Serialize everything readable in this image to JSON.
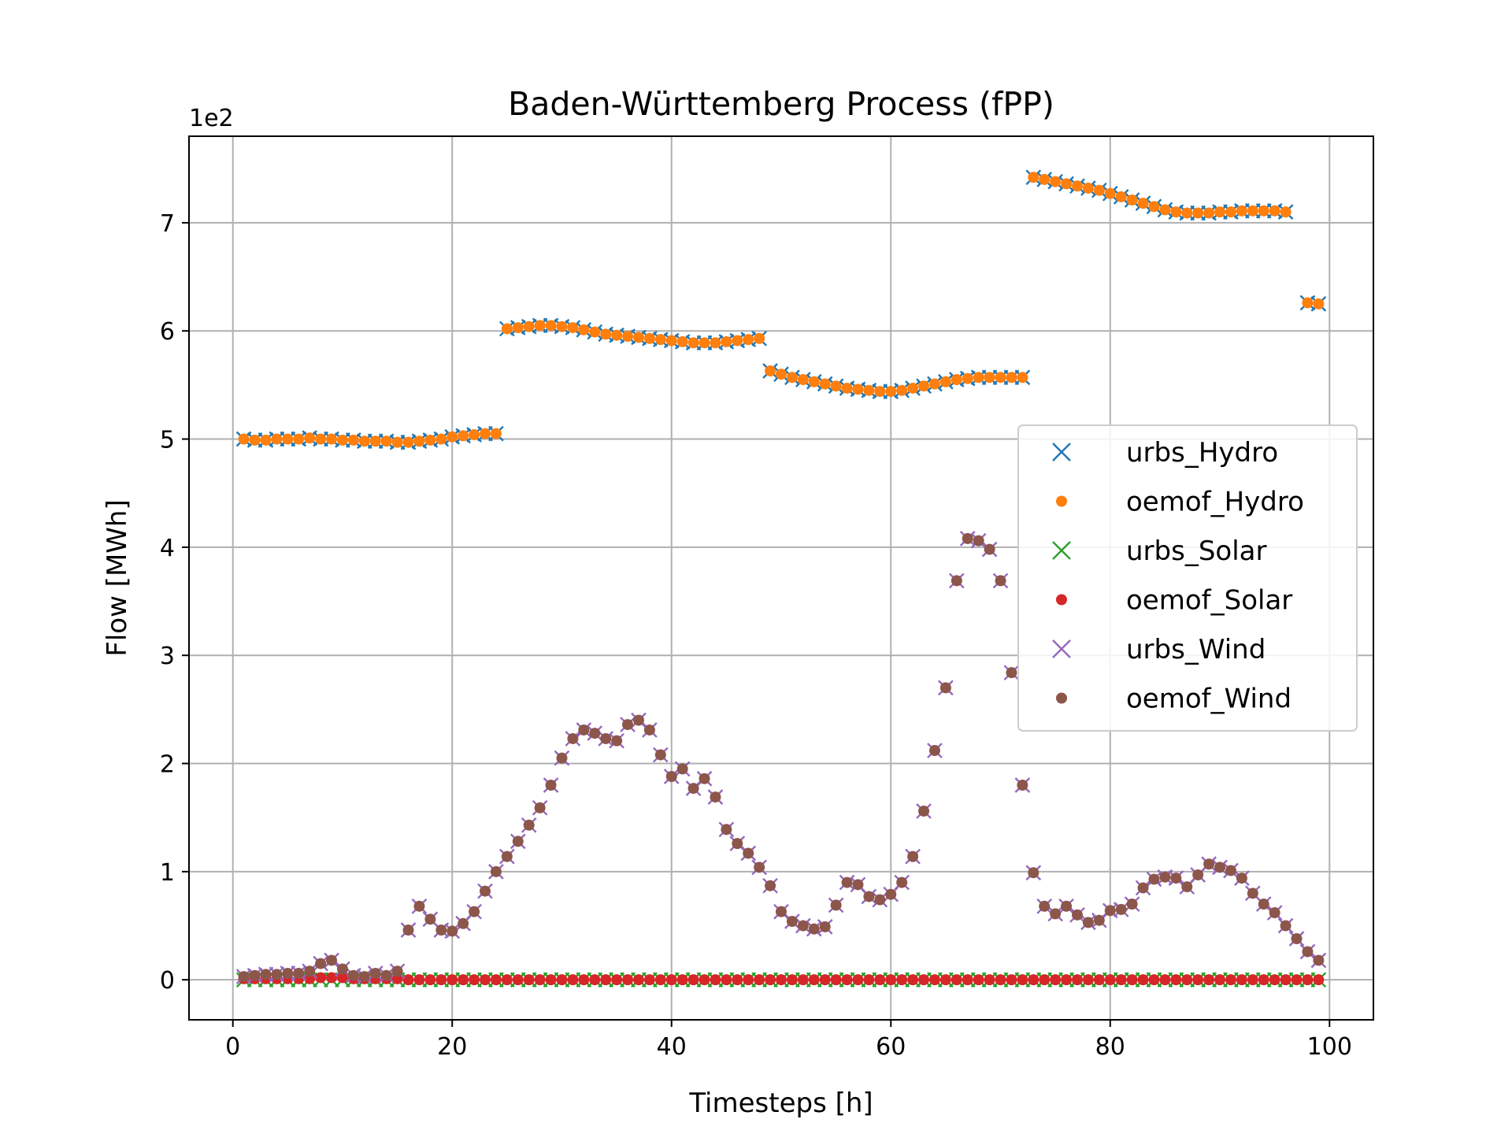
{
  "chart_data": {
    "type": "scatter",
    "title": "Baden-Württemberg Process (fPP)",
    "xlabel": "Timesteps [h]",
    "ylabel": "Flow [MWh]",
    "y_offset_text": "1e2",
    "xlim": [
      -4,
      104
    ],
    "ylim": [
      -0.37,
      7.8
    ],
    "xticks": [
      0,
      20,
      40,
      60,
      80,
      100
    ],
    "yticks": [
      0,
      1,
      2,
      3,
      4,
      5,
      6,
      7
    ],
    "grid": true,
    "legend_position": "center-right",
    "x": [
      1,
      2,
      3,
      4,
      5,
      6,
      7,
      8,
      9,
      10,
      11,
      12,
      13,
      14,
      15,
      16,
      17,
      18,
      19,
      20,
      21,
      22,
      23,
      24,
      25,
      26,
      27,
      28,
      29,
      30,
      31,
      32,
      33,
      34,
      35,
      36,
      37,
      38,
      39,
      40,
      41,
      42,
      43,
      44,
      45,
      46,
      47,
      48,
      49,
      50,
      51,
      52,
      53,
      54,
      55,
      56,
      57,
      58,
      59,
      60,
      61,
      62,
      63,
      64,
      65,
      66,
      67,
      68,
      69,
      70,
      71,
      72,
      73,
      74,
      75,
      76,
      77,
      78,
      79,
      80,
      81,
      82,
      83,
      84,
      85,
      86,
      87,
      88,
      89,
      90,
      91,
      92,
      93,
      94,
      95,
      96,
      97,
      98,
      99
    ],
    "series": [
      {
        "name": "urbs_Hydro",
        "marker": "x",
        "color": "#1f77b4",
        "values": [
          5.0,
          4.99,
          4.99,
          5.0,
          5.0,
          5.0,
          5.01,
          5.0,
          5.0,
          4.99,
          4.99,
          4.98,
          4.98,
          4.98,
          4.97,
          4.97,
          4.98,
          4.99,
          5.0,
          5.02,
          5.03,
          5.04,
          5.05,
          5.05,
          6.02,
          6.03,
          6.04,
          6.05,
          6.05,
          6.04,
          6.03,
          6.01,
          5.99,
          5.97,
          5.96,
          5.95,
          5.94,
          5.93,
          5.92,
          5.91,
          5.9,
          5.89,
          5.89,
          5.89,
          5.9,
          5.91,
          5.92,
          5.93,
          5.63,
          5.6,
          5.57,
          5.55,
          5.53,
          5.51,
          5.49,
          5.47,
          5.46,
          5.45,
          5.44,
          5.44,
          5.45,
          5.47,
          5.49,
          5.51,
          5.53,
          5.55,
          5.56,
          5.57,
          5.57,
          5.57,
          5.57,
          5.57,
          7.42,
          7.4,
          7.38,
          7.36,
          7.34,
          7.32,
          7.3,
          7.27,
          7.24,
          7.21,
          7.18,
          7.15,
          7.12,
          7.1,
          7.09,
          7.09,
          7.09,
          7.1,
          7.1,
          7.11,
          7.11,
          7.11,
          7.11,
          7.1,
          null,
          6.26,
          6.25
        ]
      },
      {
        "name": "oemof_Hydro",
        "marker": "dot",
        "color": "#ff7f0e",
        "values": [
          5.0,
          4.99,
          4.99,
          5.0,
          5.0,
          5.0,
          5.01,
          5.0,
          5.0,
          4.99,
          4.99,
          4.98,
          4.98,
          4.98,
          4.97,
          4.97,
          4.98,
          4.99,
          5.0,
          5.02,
          5.03,
          5.04,
          5.05,
          5.05,
          6.02,
          6.03,
          6.04,
          6.05,
          6.05,
          6.04,
          6.03,
          6.01,
          5.99,
          5.97,
          5.96,
          5.95,
          5.94,
          5.93,
          5.92,
          5.91,
          5.9,
          5.89,
          5.89,
          5.89,
          5.9,
          5.91,
          5.92,
          5.93,
          5.63,
          5.6,
          5.57,
          5.55,
          5.53,
          5.51,
          5.49,
          5.47,
          5.46,
          5.45,
          5.44,
          5.44,
          5.45,
          5.47,
          5.49,
          5.51,
          5.53,
          5.55,
          5.56,
          5.57,
          5.57,
          5.57,
          5.57,
          5.57,
          7.42,
          7.4,
          7.38,
          7.36,
          7.34,
          7.32,
          7.3,
          7.27,
          7.24,
          7.21,
          7.18,
          7.15,
          7.12,
          7.1,
          7.09,
          7.09,
          7.09,
          7.1,
          7.1,
          7.11,
          7.11,
          7.11,
          7.11,
          7.1,
          null,
          6.26,
          6.25
        ]
      },
      {
        "name": "urbs_Solar",
        "marker": "x",
        "color": "#2ca02c",
        "values": [
          0,
          0,
          0,
          0,
          0,
          0,
          0,
          0,
          0,
          0,
          0,
          0,
          0,
          0,
          0,
          0,
          0,
          0,
          0,
          0,
          0,
          0,
          0,
          0,
          0,
          0,
          0,
          0,
          0,
          0,
          0,
          0,
          0,
          0,
          0,
          0,
          0,
          0,
          0,
          0,
          0,
          0,
          0,
          0,
          0,
          0,
          0,
          0,
          0,
          0,
          0,
          0,
          0,
          0,
          0,
          0,
          0,
          0,
          0,
          0,
          0,
          0,
          0,
          0,
          0,
          0,
          0,
          0,
          0,
          0,
          0,
          0,
          0,
          0,
          0,
          0,
          0,
          0,
          0,
          0,
          0,
          0,
          0,
          0,
          0,
          0,
          0,
          0,
          0,
          0,
          0,
          0,
          0,
          0,
          0,
          0,
          0,
          0,
          0
        ]
      },
      {
        "name": "oemof_Solar",
        "marker": "dot",
        "color": "#d62728",
        "values": [
          0.01,
          0.01,
          0.01,
          0.01,
          0.01,
          0.01,
          0.01,
          0.02,
          0.02,
          0.02,
          0.01,
          0.01,
          0.01,
          0.01,
          0.01,
          0,
          0,
          0,
          0,
          0,
          0,
          0,
          0,
          0,
          0,
          0,
          0,
          0,
          0,
          0,
          0,
          0,
          0,
          0,
          0,
          0,
          0,
          0,
          0,
          0,
          0,
          0,
          0,
          0,
          0,
          0,
          0,
          0,
          0,
          0,
          0,
          0,
          0,
          0,
          0,
          0,
          0,
          0,
          0,
          0,
          0,
          0,
          0,
          0,
          0,
          0,
          0,
          0,
          0,
          0,
          0,
          0,
          0,
          0,
          0,
          0,
          0,
          0,
          0,
          0,
          0,
          0,
          0,
          0,
          0,
          0,
          0,
          0,
          0,
          0,
          0,
          0,
          0,
          0,
          0,
          0,
          0,
          0,
          0
        ]
      },
      {
        "name": "urbs_Wind",
        "marker": "x",
        "color": "#9467bd",
        "values": [
          0.03,
          0.04,
          0.05,
          0.05,
          0.06,
          0.06,
          0.08,
          0.15,
          0.18,
          0.1,
          0.04,
          0.03,
          0.06,
          0.04,
          0.08,
          0.46,
          0.68,
          0.56,
          0.46,
          0.45,
          0.52,
          0.63,
          0.82,
          1.0,
          1.14,
          1.28,
          1.43,
          1.59,
          1.8,
          2.05,
          2.23,
          2.31,
          2.28,
          2.23,
          2.21,
          2.36,
          2.4,
          2.31,
          2.08,
          1.88,
          1.95,
          1.77,
          1.86,
          1.69,
          1.39,
          1.26,
          1.17,
          1.04,
          0.87,
          0.63,
          0.54,
          0.5,
          0.47,
          0.49,
          0.69,
          0.9,
          0.88,
          0.77,
          0.74,
          0.79,
          0.9,
          1.14,
          1.56,
          2.12,
          2.7,
          3.69,
          4.08,
          4.06,
          3.98,
          3.69,
          2.84,
          1.8,
          0.99,
          0.68,
          0.61,
          0.68,
          0.6,
          0.53,
          0.55,
          0.64,
          0.65,
          0.7,
          0.85,
          0.93,
          0.95,
          0.94,
          0.86,
          0.97,
          1.07,
          1.04,
          1.01,
          0.94,
          0.8,
          0.7,
          0.62,
          0.5,
          0.38,
          0.26,
          0.18
        ]
      },
      {
        "name": "oemof_Wind",
        "marker": "dot",
        "color": "#8c564b",
        "values": [
          0.03,
          0.04,
          0.05,
          0.05,
          0.06,
          0.06,
          0.08,
          0.15,
          0.18,
          0.1,
          0.04,
          0.03,
          0.06,
          0.04,
          0.08,
          0.46,
          0.68,
          0.56,
          0.46,
          0.45,
          0.52,
          0.63,
          0.82,
          1.0,
          1.14,
          1.28,
          1.43,
          1.59,
          1.8,
          2.05,
          2.23,
          2.31,
          2.28,
          2.23,
          2.21,
          2.36,
          2.4,
          2.31,
          2.08,
          1.88,
          1.95,
          1.77,
          1.86,
          1.69,
          1.39,
          1.26,
          1.17,
          1.04,
          0.87,
          0.63,
          0.54,
          0.5,
          0.47,
          0.49,
          0.69,
          0.9,
          0.88,
          0.77,
          0.74,
          0.79,
          0.9,
          1.14,
          1.56,
          2.12,
          2.7,
          3.69,
          4.08,
          4.06,
          3.98,
          3.69,
          2.84,
          1.8,
          0.99,
          0.68,
          0.61,
          0.68,
          0.6,
          0.53,
          0.55,
          0.64,
          0.65,
          0.7,
          0.85,
          0.93,
          0.95,
          0.94,
          0.86,
          0.97,
          1.07,
          1.04,
          1.01,
          0.94,
          0.8,
          0.7,
          0.62,
          0.5,
          0.38,
          0.26,
          0.18
        ]
      }
    ]
  }
}
